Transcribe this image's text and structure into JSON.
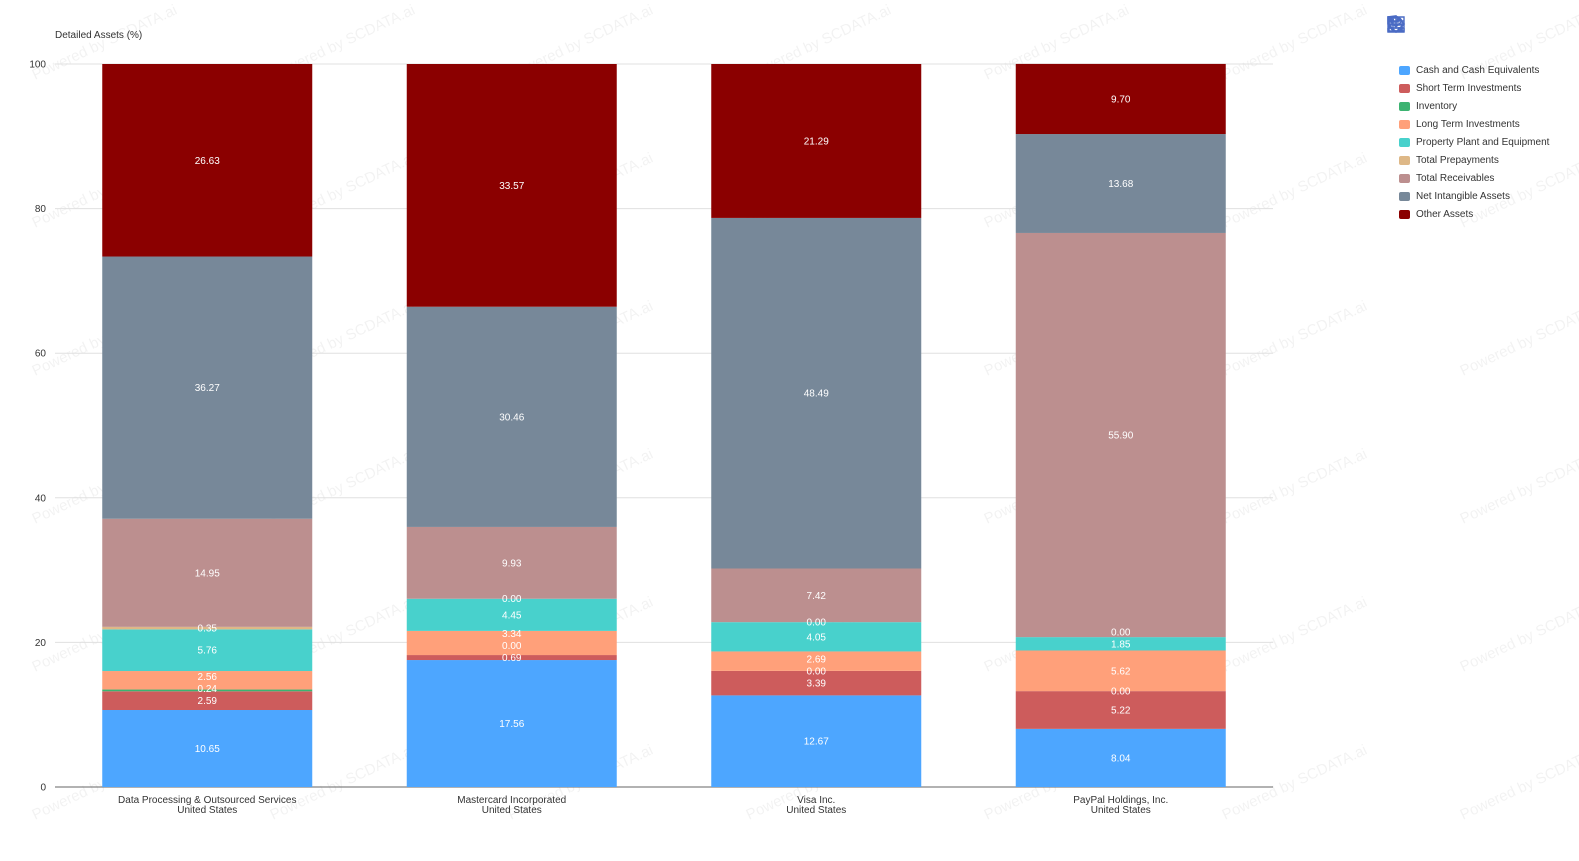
{
  "toolbar": {
    "icons": [
      "bar-align-icon",
      "tag-icon",
      "table-icon",
      "download-icon",
      "refresh-icon"
    ]
  },
  "watermark": "Powered by SCDATA.ai",
  "chart_data": {
    "type": "bar",
    "stacked": true,
    "ylabel": "Detailed Assets (%)",
    "ylim": [
      0,
      100
    ],
    "yticks": [
      0,
      20,
      40,
      60,
      80,
      100
    ],
    "grid": true,
    "legend_position": "right",
    "categories": [
      [
        "Data Processing & Outsourced Services",
        "United States"
      ],
      [
        "Mastercard Incorporated",
        "United States"
      ],
      [
        "Visa Inc.",
        "United States"
      ],
      [
        "PayPal Holdings, Inc.",
        "United States"
      ]
    ],
    "series": [
      {
        "name": "Cash and Cash Equivalents",
        "color": "#4da6ff",
        "values": [
          10.65,
          17.56,
          12.67,
          8.04
        ]
      },
      {
        "name": "Short Term Investments",
        "color": "#cd5c5c",
        "values": [
          2.59,
          0.69,
          3.39,
          5.22
        ]
      },
      {
        "name": "Inventory",
        "color": "#3cb371",
        "values": [
          0.24,
          0.0,
          0.0,
          0.0
        ]
      },
      {
        "name": "Long Term Investments",
        "color": "#ffa07a",
        "values": [
          2.56,
          3.34,
          2.69,
          5.62
        ]
      },
      {
        "name": "Property Plant and Equipment",
        "color": "#48d1cc",
        "values": [
          5.76,
          4.45,
          4.05,
          1.85
        ]
      },
      {
        "name": "Total Prepayments",
        "color": "#deb887",
        "values": [
          0.35,
          0.0,
          0.0,
          0.0
        ]
      },
      {
        "name": "Total Receivables",
        "color": "#bc8f8f",
        "values": [
          14.95,
          9.93,
          7.42,
          55.9
        ]
      },
      {
        "name": "Net Intangible Assets",
        "color": "#778899",
        "values": [
          36.27,
          30.46,
          48.49,
          13.68
        ]
      },
      {
        "name": "Other Assets",
        "color": "#8b0000",
        "values": [
          26.63,
          33.57,
          21.29,
          9.7
        ]
      }
    ]
  }
}
